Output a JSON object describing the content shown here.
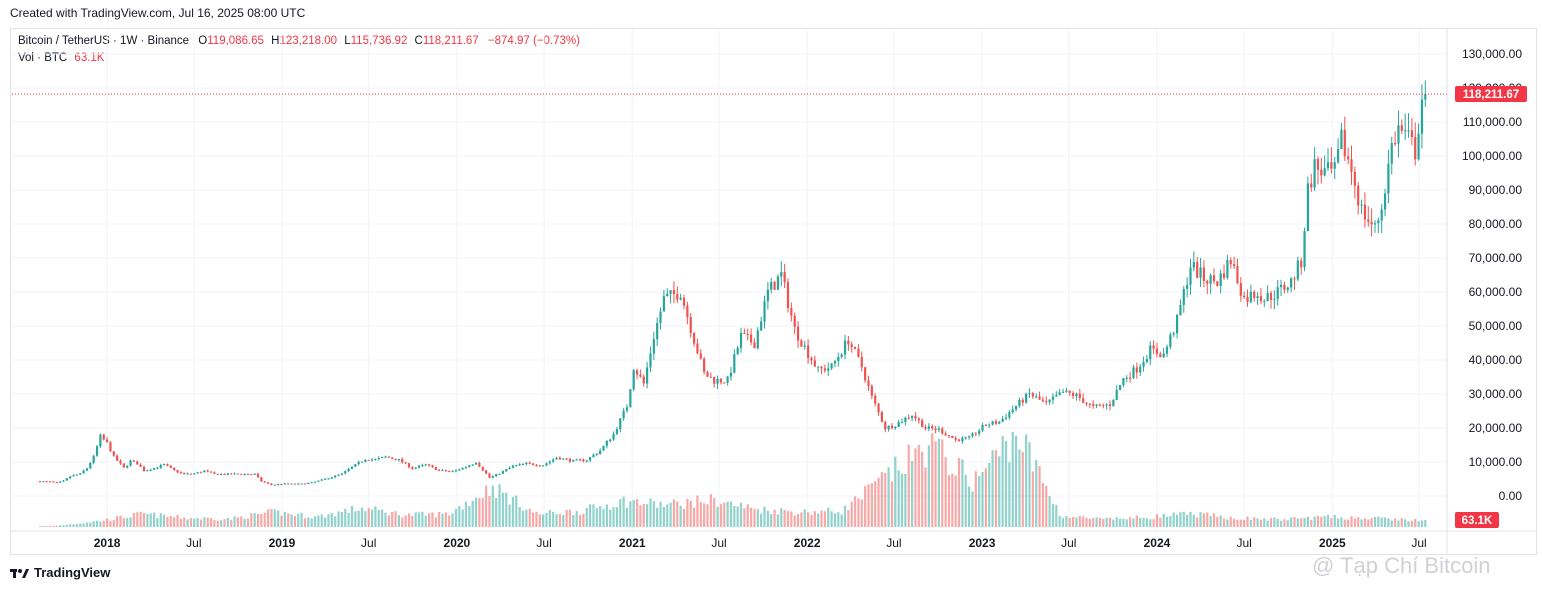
{
  "header": {
    "created_text": "Created with TradingView.com, Jul 16, 2025 08:00 UTC"
  },
  "legend": {
    "symbol": "Bitcoin / TetherUS · 1W · Binance",
    "o_label": "O",
    "o_value": "119,086.65",
    "h_label": "H",
    "h_value": "123,218.00",
    "l_label": "L",
    "l_value": "115,736.92",
    "c_label": "C",
    "c_value": "118,211.67",
    "change": "−874.97 (−0.73%)",
    "vol_label": "Vol · BTC",
    "vol_value": "63.1K"
  },
  "price_badge": "118,211.67",
  "volume_badge": "63.1K",
  "footer": {
    "brand": "TradingView",
    "watermark": "@ Tạp Chí Bitcoin"
  },
  "colors": {
    "up": "#26a69a",
    "down": "#ef5350",
    "badge": "#f23645",
    "grid": "#f0f3fa",
    "axis_text": "#131722"
  },
  "chart_data": {
    "type": "candlestick",
    "title": "Bitcoin / TetherUS · 1W · Binance",
    "interval": "1W",
    "y_axis": {
      "position": "right",
      "ylim": [
        -6000,
        136000
      ],
      "ticks": [
        0,
        10000,
        20000,
        30000,
        40000,
        50000,
        60000,
        70000,
        80000,
        90000,
        100000,
        110000,
        120000,
        130000
      ],
      "tick_labels": [
        "0.00",
        "10,000.00",
        "20,000.00",
        "30,000.00",
        "40,000.00",
        "50,000.00",
        "60,000.00",
        "70,000.00",
        "80,000.00",
        "90,000.00",
        "100,000.00",
        "110,000.00",
        "120,000.00",
        "130,000.00"
      ]
    },
    "x_axis": {
      "range": [
        "2017-08-14",
        "2025-07-28"
      ],
      "ticks": [
        {
          "date": "2018-01-01",
          "label": "2018",
          "bold": true
        },
        {
          "date": "2018-07-01",
          "label": "Jul",
          "bold": false
        },
        {
          "date": "2019-01-01",
          "label": "2019",
          "bold": true
        },
        {
          "date": "2019-07-01",
          "label": "Jul",
          "bold": false
        },
        {
          "date": "2020-01-01",
          "label": "2020",
          "bold": true
        },
        {
          "date": "2020-07-01",
          "label": "Jul",
          "bold": false
        },
        {
          "date": "2021-01-01",
          "label": "2021",
          "bold": true
        },
        {
          "date": "2021-07-01",
          "label": "Jul",
          "bold": false
        },
        {
          "date": "2022-01-01",
          "label": "2022",
          "bold": true
        },
        {
          "date": "2022-07-01",
          "label": "Jul",
          "bold": false
        },
        {
          "date": "2023-01-01",
          "label": "2023",
          "bold": true
        },
        {
          "date": "2023-07-01",
          "label": "Jul",
          "bold": false
        },
        {
          "date": "2024-01-01",
          "label": "2024",
          "bold": true
        },
        {
          "date": "2024-07-01",
          "label": "Jul",
          "bold": false
        },
        {
          "date": "2025-01-01",
          "label": "2025",
          "bold": true
        },
        {
          "date": "2025-07-01",
          "label": "Jul",
          "bold": false
        }
      ]
    },
    "series": [
      {
        "name": "Price",
        "type": "weekly close (approx.)",
        "points": [
          [
            "2017-08-14",
            4300
          ],
          [
            "2017-09-04",
            4200
          ],
          [
            "2017-09-18",
            3800
          ],
          [
            "2017-10-02",
            4400
          ],
          [
            "2017-10-16",
            5800
          ],
          [
            "2017-11-06",
            6500
          ],
          [
            "2017-11-20",
            8200
          ],
          [
            "2017-12-04",
            11500
          ],
          [
            "2017-12-18",
            17500
          ],
          [
            "2018-01-01",
            15500
          ],
          [
            "2018-01-15",
            11500
          ],
          [
            "2018-02-05",
            8200
          ],
          [
            "2018-02-19",
            10300
          ],
          [
            "2018-03-05",
            9500
          ],
          [
            "2018-03-19",
            7500
          ],
          [
            "2018-04-09",
            8200
          ],
          [
            "2018-04-30",
            9200
          ],
          [
            "2018-05-21",
            7500
          ],
          [
            "2018-06-11",
            6400
          ],
          [
            "2018-07-02",
            6600
          ],
          [
            "2018-07-23",
            7400
          ],
          [
            "2018-08-13",
            6400
          ],
          [
            "2018-09-03",
            6400
          ],
          [
            "2018-10-01",
            6500
          ],
          [
            "2018-11-05",
            6400
          ],
          [
            "2018-11-19",
            4300
          ],
          [
            "2018-12-10",
            3300
          ],
          [
            "2019-01-07",
            3600
          ],
          [
            "2019-02-04",
            3500
          ],
          [
            "2019-03-04",
            3900
          ],
          [
            "2019-04-01",
            5000
          ],
          [
            "2019-05-06",
            6500
          ],
          [
            "2019-05-27",
            8500
          ],
          [
            "2019-06-24",
            10900
          ],
          [
            "2019-07-15",
            10700
          ],
          [
            "2019-08-05",
            11500
          ],
          [
            "2019-09-02",
            10600
          ],
          [
            "2019-09-30",
            8100
          ],
          [
            "2019-10-28",
            9200
          ],
          [
            "2019-11-25",
            7500
          ],
          [
            "2019-12-23",
            7200
          ],
          [
            "2020-01-20",
            8600
          ],
          [
            "2020-02-10",
            10000
          ],
          [
            "2020-03-09",
            5400
          ],
          [
            "2020-03-30",
            6700
          ],
          [
            "2020-04-27",
            8800
          ],
          [
            "2020-05-25",
            9500
          ],
          [
            "2020-06-29",
            9100
          ],
          [
            "2020-07-27",
            11300
          ],
          [
            "2020-08-31",
            10300
          ],
          [
            "2020-09-28",
            10600
          ],
          [
            "2020-10-26",
            13400
          ],
          [
            "2020-11-23",
            18200
          ],
          [
            "2020-12-21",
            26500
          ],
          [
            "2021-01-04",
            38000
          ],
          [
            "2021-01-25",
            33000
          ],
          [
            "2021-02-15",
            47000
          ],
          [
            "2021-03-08",
            58000
          ],
          [
            "2021-04-12",
            60000
          ],
          [
            "2021-05-10",
            46000
          ],
          [
            "2021-05-31",
            36000
          ],
          [
            "2021-06-21",
            34000
          ],
          [
            "2021-07-19",
            34000
          ],
          [
            "2021-08-16",
            47000
          ],
          [
            "2021-09-13",
            45000
          ],
          [
            "2021-10-11",
            60000
          ],
          [
            "2021-11-08",
            65000
          ],
          [
            "2021-12-06",
            49000
          ],
          [
            "2022-01-03",
            42000
          ],
          [
            "2022-01-24",
            37000
          ],
          [
            "2022-02-21",
            38000
          ],
          [
            "2022-03-28",
            46000
          ],
          [
            "2022-04-25",
            38000
          ],
          [
            "2022-05-16",
            29000
          ],
          [
            "2022-06-13",
            20000
          ],
          [
            "2022-07-04",
            21000
          ],
          [
            "2022-08-08",
            24000
          ],
          [
            "2022-09-05",
            20000
          ],
          [
            "2022-10-03",
            19500
          ],
          [
            "2022-11-07",
            16500
          ],
          [
            "2022-12-05",
            17000
          ],
          [
            "2023-01-09",
            21000
          ],
          [
            "2023-02-06",
            21800
          ],
          [
            "2023-03-13",
            26500
          ],
          [
            "2023-04-10",
            30000
          ],
          [
            "2023-05-15",
            27000
          ],
          [
            "2023-06-19",
            30500
          ],
          [
            "2023-07-17",
            29500
          ],
          [
            "2023-08-21",
            26000
          ],
          [
            "2023-09-25",
            27000
          ],
          [
            "2023-10-23",
            34500
          ],
          [
            "2023-11-20",
            37500
          ],
          [
            "2023-12-18",
            43000
          ],
          [
            "2024-01-15",
            41500
          ],
          [
            "2024-02-12",
            51500
          ],
          [
            "2024-03-11",
            68000
          ],
          [
            "2024-04-08",
            64000
          ],
          [
            "2024-05-06",
            63000
          ],
          [
            "2024-06-03",
            69500
          ],
          [
            "2024-07-01",
            58000
          ],
          [
            "2024-07-29",
            60000
          ],
          [
            "2024-08-12",
            58000
          ],
          [
            "2024-09-09",
            60000
          ],
          [
            "2024-10-07",
            63000
          ],
          [
            "2024-10-28",
            69000
          ],
          [
            "2024-11-11",
            90000
          ],
          [
            "2024-11-25",
            97000
          ],
          [
            "2024-12-16",
            95000
          ],
          [
            "2025-01-06",
            95000
          ],
          [
            "2025-01-20",
            104500
          ],
          [
            "2025-02-10",
            96000
          ],
          [
            "2025-03-03",
            84000
          ],
          [
            "2025-03-31",
            78500
          ],
          [
            "2025-04-14",
            85000
          ],
          [
            "2025-05-05",
            103000
          ],
          [
            "2025-05-19",
            108000
          ],
          [
            "2025-06-09",
            105000
          ],
          [
            "2025-06-23",
            101500
          ],
          [
            "2025-07-07",
            117000
          ],
          [
            "2025-07-14",
            118211.67
          ]
        ]
      },
      {
        "name": "Volume",
        "type": "weekly volume (approx., thousands BTC)",
        "points": [
          [
            "2017-09",
            10
          ],
          [
            "2017-12",
            60
          ],
          [
            "2018-03",
            130
          ],
          [
            "2018-06",
            90
          ],
          [
            "2018-09",
            80
          ],
          [
            "2018-12",
            150
          ],
          [
            "2019-03",
            100
          ],
          [
            "2019-06",
            190
          ],
          [
            "2019-09",
            120
          ],
          [
            "2019-12",
            130
          ],
          [
            "2020-03",
            400
          ],
          [
            "2020-06",
            130
          ],
          [
            "2020-09",
            160
          ],
          [
            "2020-12",
            260
          ],
          [
            "2021-03",
            220
          ],
          [
            "2021-06",
            270
          ],
          [
            "2021-09",
            180
          ],
          [
            "2021-12",
            150
          ],
          [
            "2022-03",
            160
          ],
          [
            "2022-06",
            500
          ],
          [
            "2022-09",
            820
          ],
          [
            "2022-12",
            450
          ],
          [
            "2023-03",
            950
          ],
          [
            "2023-06",
            110
          ],
          [
            "2023-09",
            75
          ],
          [
            "2023-12",
            100
          ],
          [
            "2024-03",
            130
          ],
          [
            "2024-06",
            90
          ],
          [
            "2024-09",
            75
          ],
          [
            "2024-12",
            100
          ],
          [
            "2025-03",
            90
          ],
          [
            "2025-06",
            70
          ],
          [
            "2025-07-14",
            63.1
          ]
        ]
      }
    ],
    "last_price": 118211.67,
    "last_volume": "63.1K",
    "grid": true,
    "legend_placement": "top-left"
  }
}
